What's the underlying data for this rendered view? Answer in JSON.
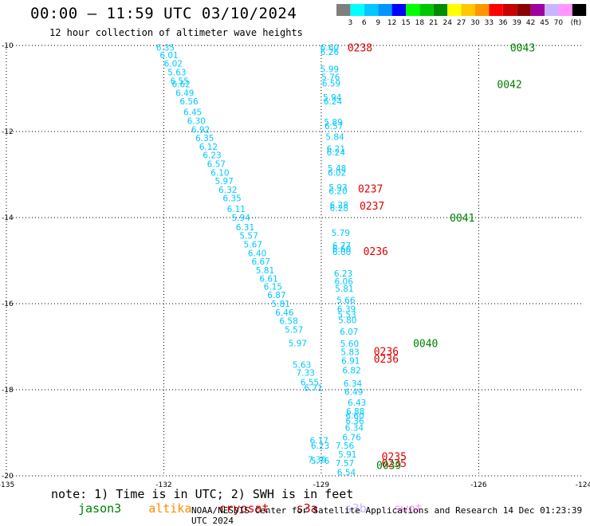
{
  "header": {
    "title": "00:00 – 11:59 UTC 03/10/2024",
    "subtitle": "12 hour collection of altimeter wave heights"
  },
  "colorbar": {
    "unit": "(ft)",
    "bins": [
      {
        "label": "",
        "color": "#7f7f7f"
      },
      {
        "label": "3",
        "color": "#00ffff"
      },
      {
        "label": "6",
        "color": "#00c8ff"
      },
      {
        "label": "9",
        "color": "#0096ff"
      },
      {
        "label": "12",
        "color": "#0000ff"
      },
      {
        "label": "15",
        "color": "#00ff00"
      },
      {
        "label": "18",
        "color": "#00c800"
      },
      {
        "label": "21",
        "color": "#008c00"
      },
      {
        "label": "24",
        "color": "#ffff00"
      },
      {
        "label": "27",
        "color": "#ffc800"
      },
      {
        "label": "30",
        "color": "#ff9600"
      },
      {
        "label": "33",
        "color": "#ff0000"
      },
      {
        "label": "36",
        "color": "#c80000"
      },
      {
        "label": "39",
        "color": "#8c0000"
      },
      {
        "label": "42",
        "color": "#a000a0"
      },
      {
        "label": "45",
        "color": "#c8b4ff"
      },
      {
        "label": "70",
        "color": "#ff96ff"
      },
      {
        "label": "",
        "color": "#000000"
      }
    ]
  },
  "note": {
    "prefix": "note: 1) Time is in UTC; 2) SWH is in feet",
    "satellites": [
      {
        "name": "jason3",
        "color": "#008000"
      },
      {
        "name": "altika",
        "color": "#ff8c00"
      },
      {
        "name": "cryosat",
        "color": "#e00000"
      },
      {
        "name": "s3a",
        "color": "#b00000"
      },
      {
        "name": "s3b",
        "color": "#c8b4ff"
      },
      {
        "name": "swot",
        "color": "#ff96ff"
      }
    ]
  },
  "credit": "NOAA/NESDIS Center for Satellite Applications and Research   14 Dec 01:23:39 UTC 2024",
  "chart_data": {
    "type": "scatter",
    "title": "00:00 – 11:59 UTC 03/10/2024",
    "xlim": [
      -135,
      -124
    ],
    "ylim": [
      -20,
      -10
    ],
    "x_ticks": [
      "-135",
      "-132",
      "-129",
      "-126",
      "-123",
      "-124"
    ],
    "y_ticks": [
      "-10",
      "-12",
      "-14",
      "-16",
      "-18",
      "-20"
    ],
    "grid": true,
    "value_color": "#00c8ff",
    "series": [
      {
        "points": [
          {
            "x": -128.84,
            "y": -10.05,
            "v": "6.60"
          },
          {
            "x": -128.84,
            "y": -10.15,
            "v": "6.26"
          },
          {
            "x": -128.84,
            "y": -10.55,
            "v": "5.99"
          },
          {
            "x": -128.82,
            "y": -10.73,
            "v": "5.76"
          },
          {
            "x": -128.81,
            "y": -10.88,
            "v": "6.59"
          },
          {
            "x": -128.79,
            "y": -11.2,
            "v": "5.94"
          },
          {
            "x": -128.78,
            "y": -11.3,
            "v": "6.24"
          },
          {
            "x": -128.77,
            "y": -11.78,
            "v": "5.89"
          },
          {
            "x": -128.76,
            "y": -11.87,
            "v": "6.57"
          },
          {
            "x": -128.74,
            "y": -12.12,
            "v": "5.84"
          },
          {
            "x": -128.72,
            "y": -12.4,
            "v": "6.21"
          },
          {
            "x": -128.72,
            "y": -12.48,
            "v": "6.24"
          },
          {
            "x": -128.7,
            "y": -12.85,
            "v": "5.48"
          },
          {
            "x": -128.7,
            "y": -12.95,
            "v": "6.02"
          },
          {
            "x": -128.68,
            "y": -13.3,
            "v": "5.93"
          },
          {
            "x": -128.68,
            "y": -13.38,
            "v": "6.20"
          },
          {
            "x": -128.66,
            "y": -13.7,
            "v": "6.28"
          },
          {
            "x": -128.66,
            "y": -13.78,
            "v": "6.28"
          },
          {
            "x": -128.63,
            "y": -14.35,
            "v": "5.79"
          },
          {
            "x": -128.61,
            "y": -14.65,
            "v": "6.77"
          },
          {
            "x": -128.61,
            "y": -14.72,
            "v": "6.60"
          },
          {
            "x": -128.61,
            "y": -14.8,
            "v": "6.00"
          },
          {
            "x": -128.58,
            "y": -15.3,
            "v": "6.23"
          },
          {
            "x": -128.57,
            "y": -15.48,
            "v": "6.06"
          },
          {
            "x": -128.56,
            "y": -15.65,
            "v": "5.81"
          },
          {
            "x": -128.53,
            "y": -15.92,
            "v": "5.66"
          },
          {
            "x": -128.52,
            "y": -16.12,
            "v": "6.39"
          },
          {
            "x": -128.51,
            "y": -16.25,
            "v": "5.53"
          },
          {
            "x": -128.5,
            "y": -16.38,
            "v": "5.80"
          },
          {
            "x": -128.47,
            "y": -16.65,
            "v": "6.07"
          },
          {
            "x": -128.46,
            "y": -16.93,
            "v": "5.60"
          },
          {
            "x": -128.45,
            "y": -17.12,
            "v": "5.83"
          },
          {
            "x": -128.44,
            "y": -17.32,
            "v": "6.91"
          },
          {
            "x": -128.42,
            "y": -17.55,
            "v": "6.82"
          },
          {
            "x": -128.4,
            "y": -17.85,
            "v": "6.34"
          },
          {
            "x": -128.38,
            "y": -18.05,
            "v": "6.49"
          },
          {
            "x": -128.32,
            "y": -18.3,
            "v": "6.43"
          },
          {
            "x": -128.35,
            "y": -18.5,
            "v": "6.88"
          },
          {
            "x": -128.36,
            "y": -18.6,
            "v": "6.60"
          },
          {
            "x": -128.36,
            "y": -18.72,
            "v": "6.36"
          },
          {
            "x": -128.37,
            "y": -18.88,
            "v": "6.34"
          },
          {
            "x": -128.42,
            "y": -19.1,
            "v": "6.76"
          },
          {
            "x": -128.55,
            "y": -19.3,
            "v": "7.56"
          },
          {
            "x": -128.5,
            "y": -19.5,
            "v": "5.91"
          },
          {
            "x": -128.55,
            "y": -19.7,
            "v": "7.57"
          },
          {
            "x": -128.52,
            "y": -19.92,
            "v": "6.54"
          },
          {
            "x": -129.02,
            "y": -19.65,
            "v": "5.76"
          },
          {
            "x": -129.02,
            "y": -19.3,
            "v": "6.23"
          },
          {
            "x": -129.04,
            "y": -19.18,
            "v": "6.17"
          },
          {
            "x": -129.08,
            "y": -19.62,
            "v": "7.39"
          },
          {
            "x": -129.15,
            "y": -17.95,
            "v": "6.71"
          },
          {
            "x": -129.22,
            "y": -17.82,
            "v": "6.55"
          },
          {
            "x": -129.3,
            "y": -17.6,
            "v": "7.33"
          },
          {
            "x": -129.37,
            "y": -17.42,
            "v": "5.63"
          },
          {
            "x": -129.45,
            "y": -16.92,
            "v": "5.97"
          },
          {
            "x": -129.52,
            "y": -16.6,
            "v": "5.57"
          },
          {
            "x": -129.62,
            "y": -16.4,
            "v": "6.58"
          },
          {
            "x": -129.7,
            "y": -16.2,
            "v": "6.46"
          },
          {
            "x": -129.77,
            "y": -16.0,
            "v": "5.81"
          },
          {
            "x": -129.85,
            "y": -15.8,
            "v": "6.87"
          },
          {
            "x": -129.92,
            "y": -15.6,
            "v": "6.15"
          },
          {
            "x": -130.0,
            "y": -15.42,
            "v": "6.61"
          },
          {
            "x": -130.07,
            "y": -15.22,
            "v": "5.81"
          },
          {
            "x": -130.15,
            "y": -15.02,
            "v": "6.67"
          },
          {
            "x": -130.22,
            "y": -14.82,
            "v": "6.40"
          },
          {
            "x": -130.3,
            "y": -14.62,
            "v": "5.67"
          },
          {
            "x": -130.38,
            "y": -14.42,
            "v": "5.57"
          },
          {
            "x": -130.45,
            "y": -14.22,
            "v": "6.31"
          },
          {
            "x": -130.53,
            "y": -14.0,
            "v": "5.94"
          },
          {
            "x": -130.62,
            "y": -13.8,
            "v": "6.11"
          },
          {
            "x": -130.7,
            "y": -13.55,
            "v": "6.35"
          },
          {
            "x": -130.78,
            "y": -13.35,
            "v": "6.32"
          },
          {
            "x": -130.85,
            "y": -13.15,
            "v": "5.97"
          },
          {
            "x": -130.93,
            "y": -12.95,
            "v": "6.10"
          },
          {
            "x": -131.0,
            "y": -12.75,
            "v": "6.57"
          },
          {
            "x": -131.08,
            "y": -12.55,
            "v": "6.23"
          },
          {
            "x": -131.15,
            "y": -12.35,
            "v": "6.12"
          },
          {
            "x": -131.22,
            "y": -12.15,
            "v": "6.35"
          },
          {
            "x": -131.3,
            "y": -11.95,
            "v": "6.92"
          },
          {
            "x": -131.38,
            "y": -11.75,
            "v": "6.30"
          },
          {
            "x": -131.45,
            "y": -11.55,
            "v": "6.45"
          },
          {
            "x": -131.52,
            "y": -11.3,
            "v": "6.56"
          },
          {
            "x": -131.6,
            "y": -11.1,
            "v": "6.49"
          },
          {
            "x": -131.67,
            "y": -10.9,
            "v": "6.62"
          },
          {
            "x": -131.7,
            "y": -10.82,
            "v": "6.55"
          },
          {
            "x": -131.75,
            "y": -10.62,
            "v": "5.63"
          },
          {
            "x": -131.82,
            "y": -10.42,
            "v": "6.02"
          },
          {
            "x": -131.9,
            "y": -10.22,
            "v": "6.01"
          },
          {
            "x": -131.97,
            "y": -10.05,
            "v": "6.35"
          }
        ]
      }
    ],
    "annotations": [
      {
        "x": -128.5,
        "y": -10.05,
        "text": "0238",
        "color": "#e00000"
      },
      {
        "x": -128.3,
        "y": -13.32,
        "text": "0237",
        "color": "#e00000"
      },
      {
        "x": -128.27,
        "y": -13.72,
        "text": "0237",
        "color": "#e00000"
      },
      {
        "x": -128.2,
        "y": -14.78,
        "text": "0236",
        "color": "#e00000"
      },
      {
        "x": -128.0,
        "y": -17.1,
        "text": "0236",
        "color": "#e00000"
      },
      {
        "x": -128.0,
        "y": -17.28,
        "text": "0236",
        "color": "#e00000"
      },
      {
        "x": -127.85,
        "y": -19.55,
        "text": "0235",
        "color": "#e00000"
      },
      {
        "x": -127.85,
        "y": -19.7,
        "text": "0235",
        "color": "#e00000"
      },
      {
        "x": -127.95,
        "y": -19.75,
        "text": "0039",
        "color": "#008000"
      },
      {
        "x": -127.25,
        "y": -16.92,
        "text": "0040",
        "color": "#008000"
      },
      {
        "x": -126.55,
        "y": -14.0,
        "text": "0041",
        "color": "#008000"
      },
      {
        "x": -125.65,
        "y": -10.9,
        "text": "0042",
        "color": "#008000"
      },
      {
        "x": -125.4,
        "y": -10.05,
        "text": "0043",
        "color": "#008000"
      }
    ]
  }
}
